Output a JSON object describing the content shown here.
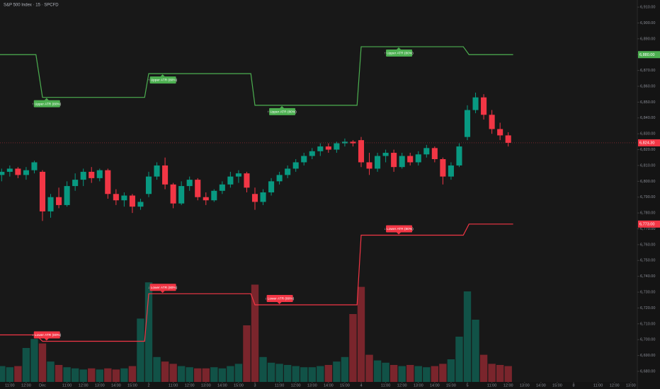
{
  "chart_data": {
    "type": "candlestick",
    "title": "S&P 500 Index · 15 · SPCFD",
    "x": [
      -1,
      0,
      1,
      2,
      3,
      4,
      5,
      6,
      7,
      8,
      9,
      10,
      11,
      12,
      13,
      14,
      15,
      16,
      17,
      18,
      19,
      20,
      21,
      22,
      23,
      24,
      25,
      26,
      27,
      28,
      29,
      30,
      31,
      32,
      33,
      34,
      35,
      36,
      37,
      38,
      39,
      40,
      41,
      42,
      43,
      44,
      45,
      46,
      47,
      48,
      49,
      50,
      51,
      52,
      53,
      54,
      55,
      56,
      57,
      58,
      59,
      60,
      61
    ],
    "open": [
      6804,
      6806,
      6808,
      6804,
      6807,
      6806,
      6781,
      6790,
      6785,
      6797,
      6801,
      6806,
      6802,
      6807,
      6792,
      6788,
      6791,
      6784,
      6792,
      6803,
      6810,
      6798,
      6786,
      6797,
      6801,
      6790,
      6788,
      6794,
      6798,
      6803,
      6805,
      6792,
      6787,
      6793,
      6800,
      6804,
      6808,
      6812,
      6816,
      6819,
      6822,
      6820,
      6824,
      6825,
      6826,
      6812,
      6808,
      6816,
      6818,
      6809,
      6816,
      6812,
      6817,
      6821,
      6814,
      6803,
      6810,
      6828,
      6845,
      6853,
      6842,
      6833,
      6829
    ],
    "high": [
      6808,
      6810,
      6809,
      6809,
      6813,
      6807,
      6792,
      6796,
      6800,
      6805,
      6808,
      6809,
      6808,
      6808,
      6795,
      6793,
      6792,
      6789,
      6806,
      6812,
      6815,
      6799,
      6800,
      6803,
      6802,
      6793,
      6795,
      6800,
      6806,
      6807,
      6806,
      6796,
      6795,
      6802,
      6806,
      6810,
      6814,
      6818,
      6821,
      6824,
      6824,
      6825,
      6827,
      6826,
      6828,
      6818,
      6818,
      6820,
      6820,
      6818,
      6818,
      6819,
      6823,
      6822,
      6815,
      6812,
      6824,
      6848,
      6856,
      6855,
      6845,
      6837,
      6831
    ],
    "low": [
      6800,
      6803,
      6802,
      6801,
      6805,
      6775,
      6777,
      6783,
      6784,
      6794,
      6797,
      6799,
      6800,
      6789,
      6785,
      6784,
      6780,
      6782,
      6790,
      6801,
      6795,
      6783,
      6785,
      6794,
      6788,
      6785,
      6787,
      6792,
      6796,
      6799,
      6793,
      6782,
      6785,
      6791,
      6798,
      6802,
      6806,
      6810,
      6814,
      6816,
      6818,
      6818,
      6822,
      6822,
      6809,
      6804,
      6806,
      6812,
      6806,
      6808,
      6810,
      6810,
      6815,
      6812,
      6798,
      6801,
      6809,
      6826,
      6843,
      6839,
      6830,
      6826,
      6822
    ],
    "close": [
      6806,
      6808,
      6804,
      6807,
      6812,
      6781,
      6790,
      6785,
      6797,
      6801,
      6806,
      6802,
      6807,
      6792,
      6788,
      6791,
      6784,
      6787,
      6803,
      6810,
      6798,
      6786,
      6797,
      6801,
      6790,
      6788,
      6794,
      6798,
      6803,
      6805,
      6796,
      6787,
      6793,
      6800,
      6804,
      6808,
      6812,
      6816,
      6819,
      6822,
      6820,
      6824,
      6825,
      6824,
      6812,
      6808,
      6816,
      6818,
      6809,
      6816,
      6812,
      6817,
      6821,
      6814,
      6803,
      6810,
      6822,
      6845,
      6853,
      6842,
      6833,
      6829,
      6824.3
    ],
    "current_label": "6,824.30",
    "up_color": "#089981",
    "down_color": "#f23645",
    "volume": {
      "axis": "y2",
      "values": [
        14,
        13,
        14,
        30,
        38,
        34,
        18,
        15,
        13,
        12,
        11,
        12,
        11,
        12,
        11,
        12,
        14,
        56,
        88,
        22,
        18,
        16,
        14,
        13,
        12,
        12,
        13,
        12,
        14,
        16,
        50,
        86,
        22,
        17,
        16,
        15,
        14,
        13,
        13,
        14,
        15,
        18,
        22,
        60,
        84,
        24,
        19,
        17,
        15,
        14,
        15,
        14,
        13,
        14,
        16,
        20,
        40,
        80,
        55,
        24,
        16,
        15,
        14
      ]
    },
    "y2lim": [
      0,
      337.5
    ],
    "xlim": [
      -1.2,
      76.8
    ],
    "xticks": [
      {
        "value": 0,
        "label": "11:00"
      },
      {
        "value": 2,
        "label": "12:00"
      },
      {
        "value": 4,
        "label": "Dec"
      },
      {
        "value": 7,
        "label": "11:00"
      },
      {
        "value": 9,
        "label": "12:00"
      },
      {
        "value": 11,
        "label": "13:00"
      },
      {
        "value": 13,
        "label": "14:00"
      },
      {
        "value": 15,
        "label": "15:00"
      },
      {
        "value": 17,
        "label": "2"
      },
      {
        "value": 20,
        "label": "11:00"
      },
      {
        "value": 22,
        "label": "12:00"
      },
      {
        "value": 24,
        "label": "13:00"
      },
      {
        "value": 26,
        "label": "14:00"
      },
      {
        "value": 28,
        "label": "15:00"
      },
      {
        "value": 30,
        "label": "3"
      },
      {
        "value": 33,
        "label": "11:00"
      },
      {
        "value": 35,
        "label": "12:00"
      },
      {
        "value": 37,
        "label": "13:00"
      },
      {
        "value": 39,
        "label": "14:00"
      },
      {
        "value": 41,
        "label": "15:00"
      },
      {
        "value": 43,
        "label": "4"
      },
      {
        "value": 46,
        "label": "11:00"
      },
      {
        "value": 48,
        "label": "12:00"
      },
      {
        "value": 50,
        "label": "13:00"
      },
      {
        "value": 52,
        "label": "14:00"
      },
      {
        "value": 54,
        "label": "15:00"
      },
      {
        "value": 56,
        "label": "5"
      },
      {
        "value": 59,
        "label": "11:00"
      },
      {
        "value": 61,
        "label": "12:00"
      },
      {
        "value": 63,
        "label": "13:00"
      },
      {
        "value": 65,
        "label": "14:00"
      },
      {
        "value": 67,
        "label": "15:00"
      },
      {
        "value": 69,
        "label": "8"
      },
      {
        "value": 72,
        "label": "11:00"
      },
      {
        "value": 74,
        "label": "12:00"
      },
      {
        "value": 76,
        "label": "13:00"
      }
    ],
    "ylim": [
      6673.3,
      6914.5
    ],
    "yticks": [
      {
        "value": 6680,
        "label": "6,680.00"
      },
      {
        "value": 6690,
        "label": "6,690.00"
      },
      {
        "value": 6700,
        "label": "6,700.00"
      },
      {
        "value": 6710,
        "label": "6,710.00"
      },
      {
        "value": 6720,
        "label": "6,720.00"
      },
      {
        "value": 6730,
        "label": "6,730.00"
      },
      {
        "value": 6740,
        "label": "6,740.00"
      },
      {
        "value": 6750,
        "label": "6,750.00"
      },
      {
        "value": 6760,
        "label": "6,760.00"
      },
      {
        "value": 6770,
        "label": "6,770.00"
      },
      {
        "value": 6780,
        "label": "6,780.00"
      },
      {
        "value": 6790,
        "label": "6,790.00"
      },
      {
        "value": 6800,
        "label": "6,800.00"
      },
      {
        "value": 6810,
        "label": "6,810.00"
      },
      {
        "value": 6820,
        "label": "6,820.00"
      },
      {
        "value": 6830,
        "label": "6,830.00"
      },
      {
        "value": 6840,
        "label": "6,840.00"
      },
      {
        "value": 6850,
        "label": "6,850.00"
      },
      {
        "value": 6860,
        "label": "6,860.00"
      },
      {
        "value": 6870,
        "label": "6,870.00"
      },
      {
        "value": 6880,
        "label": "6,880.00"
      },
      {
        "value": 6890,
        "label": "6,890.00"
      },
      {
        "value": 6900,
        "label": "6,900.00"
      },
      {
        "value": 6910,
        "label": "6,910.00"
      }
    ],
    "lines": [
      {
        "name": "↑ Upper ATR (80%)",
        "color": "#4caf50",
        "label_side": "below",
        "x": [
          -1.2,
          3.2,
          4,
          16.5,
          17,
          29.5,
          30,
          42.5,
          43,
          55.5,
          56.2,
          61.6
        ],
        "values": [
          6880,
          6880,
          6853,
          6853,
          6868,
          6868,
          6848,
          6848,
          6885,
          6885,
          6880,
          6880
        ],
        "last_label": "6,880.00",
        "annotations": [
          {
            "x": 4.5,
            "y": 6853
          },
          {
            "x": 18.7,
            "y": 6868
          },
          {
            "x": 33.3,
            "y": 6848
          },
          {
            "x": 47.6,
            "y": 6885
          }
        ]
      },
      {
        "name": "↓ Lower ATR (80%)",
        "color": "#f23645",
        "label_side": "above",
        "x": [
          -1.2,
          3.2,
          4,
          16.5,
          17,
          29.5,
          30,
          42.5,
          43,
          55.5,
          56.2,
          61.6
        ],
        "values": [
          6703,
          6703,
          6699,
          6699,
          6729,
          6729,
          6722,
          6722,
          6766,
          6766,
          6773,
          6773
        ],
        "last_label": "6,773.00",
        "annotations": [
          {
            "x": 4.5,
            "y": 6699
          },
          {
            "x": 18.7,
            "y": 6729
          },
          {
            "x": 33,
            "y": 6722
          },
          {
            "x": 47.6,
            "y": 6766
          }
        ]
      }
    ]
  }
}
